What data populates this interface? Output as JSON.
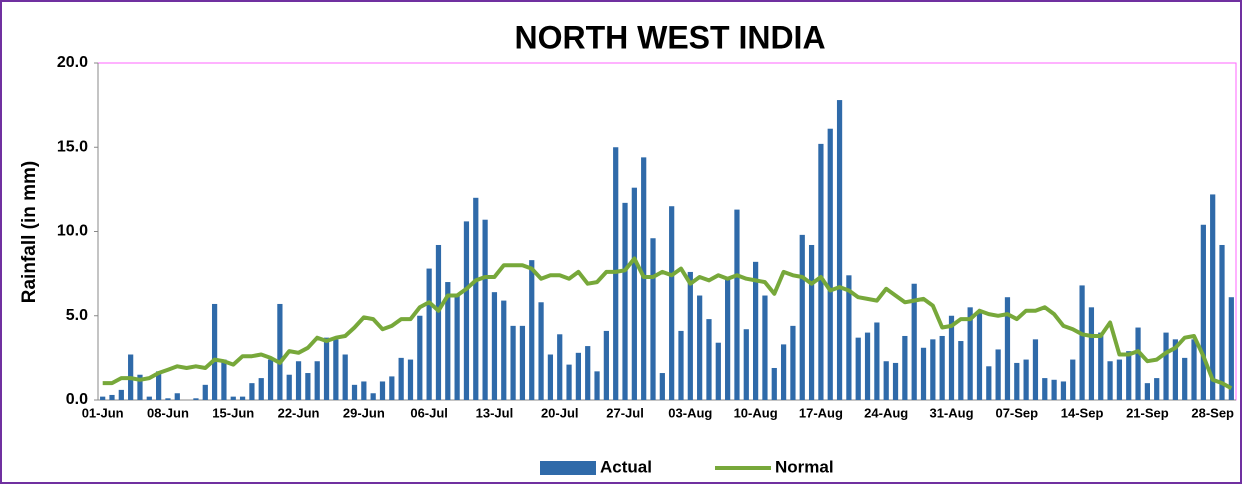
{
  "chart_data": {
    "type": "bar_line",
    "title": "NORTH WEST INDIA",
    "y_label": "Rainfall (in mm)",
    "categories": [
      "01-Jun",
      null,
      null,
      null,
      null,
      null,
      null,
      "08-Jun",
      null,
      null,
      null,
      null,
      null,
      null,
      "15-Jun",
      null,
      null,
      null,
      null,
      null,
      null,
      "22-Jun",
      null,
      null,
      null,
      null,
      null,
      null,
      "29-Jun",
      null,
      null,
      null,
      null,
      null,
      null,
      "06-Jul",
      null,
      null,
      null,
      null,
      null,
      null,
      "13-Jul",
      null,
      null,
      null,
      null,
      null,
      null,
      "20-Jul",
      null,
      null,
      null,
      null,
      null,
      null,
      "27-Jul",
      null,
      null,
      null,
      null,
      null,
      null,
      "03-Aug",
      null,
      null,
      null,
      null,
      null,
      null,
      "10-Aug",
      null,
      null,
      null,
      null,
      null,
      null,
      "17-Aug",
      null,
      null,
      null,
      null,
      null,
      null,
      "24-Aug",
      null,
      null,
      null,
      null,
      null,
      null,
      "31-Aug",
      null,
      null,
      null,
      null,
      null,
      null,
      "07-Sep",
      null,
      null,
      null,
      null,
      null,
      null,
      "14-Sep",
      null,
      null,
      null,
      null,
      null,
      null,
      "21-Sep",
      null,
      null,
      null,
      null,
      null,
      null,
      "28-Sep",
      null,
      null
    ],
    "series": [
      {
        "name": "Actual",
        "kind": "bar",
        "color": "#2f6aa9",
        "values": [
          0.2,
          0.3,
          0.6,
          2.7,
          1.5,
          0.2,
          1.7,
          0.1,
          0.4,
          0,
          0.1,
          0.9,
          5.7,
          2.4,
          0.2,
          0.2,
          1.0,
          1.3,
          2.4,
          5.7,
          1.5,
          2.3,
          1.6,
          2.3,
          3.7,
          3.6,
          2.7,
          0.9,
          1.1,
          0.4,
          1.1,
          1.4,
          2.5,
          2.4,
          5.0,
          7.8,
          9.2,
          7.0,
          6.3,
          10.6,
          12.0,
          10.7,
          6.4,
          5.9,
          4.4,
          4.4,
          8.3,
          5.8,
          2.7,
          3.9,
          2.1,
          2.8,
          3.2,
          1.7,
          4.1,
          15.0,
          11.7,
          12.6,
          14.4,
          9.6,
          1.6,
          11.5,
          4.1,
          7.6,
          6.2,
          4.8,
          3.4,
          7.2,
          11.3,
          4.2,
          8.2,
          6.2,
          1.9,
          3.3,
          4.4,
          9.8,
          9.2,
          15.2,
          16.1,
          17.8,
          7.4,
          3.7,
          4.0,
          4.6,
          2.3,
          2.2,
          3.8,
          6.9,
          3.1,
          3.6,
          3.8,
          5.0,
          3.5,
          5.5,
          5.3,
          2.0,
          3.0,
          6.1,
          2.2,
          2.4,
          3.6,
          1.3,
          1.2,
          1.1,
          2.4,
          6.8,
          5.5,
          4.0,
          2.3,
          2.4,
          2.9,
          4.3,
          1.0,
          1.3,
          4.0,
          3.6,
          2.5,
          3.6,
          10.4,
          12.2,
          9.2,
          6.1
        ]
      },
      {
        "name": "Normal",
        "kind": "line",
        "color": "#77a83a",
        "values": [
          1.0,
          1.0,
          1.3,
          1.3,
          1.2,
          1.3,
          1.6,
          1.8,
          2.0,
          1.9,
          2.0,
          1.9,
          2.4,
          2.3,
          2.1,
          2.6,
          2.6,
          2.7,
          2.5,
          2.2,
          2.9,
          2.8,
          3.1,
          3.7,
          3.5,
          3.7,
          3.8,
          4.3,
          4.9,
          4.8,
          4.2,
          4.4,
          4.8,
          4.8,
          5.5,
          5.8,
          5.3,
          6.2,
          6.2,
          6.6,
          7.1,
          7.3,
          7.3,
          8.0,
          8.0,
          8.0,
          7.8,
          7.2,
          7.4,
          7.4,
          7.2,
          7.6,
          6.9,
          7.0,
          7.6,
          7.6,
          7.7,
          8.4,
          7.3,
          7.3,
          7.6,
          7.4,
          7.8,
          6.9,
          7.3,
          7.1,
          7.4,
          7.2,
          7.4,
          7.2,
          7.1,
          7.0,
          6.3,
          7.6,
          7.4,
          7.3,
          6.9,
          7.3,
          6.5,
          6.7,
          6.5,
          6.1,
          6.0,
          5.9,
          6.6,
          6.2,
          5.8,
          5.9,
          6.0,
          5.6,
          4.3,
          4.4,
          4.8,
          4.8,
          5.3,
          5.1,
          5.0,
          5.1,
          4.8,
          5.3,
          5.3,
          5.5,
          5.1,
          4.4,
          4.2,
          3.9,
          3.8,
          3.8,
          4.6,
          2.7,
          2.7,
          2.9,
          2.3,
          2.4,
          2.8,
          3.1,
          3.7,
          3.8,
          2.6,
          1.2,
          1.0,
          0.7
        ]
      }
    ],
    "ylim": [
      0,
      20
    ],
    "yticks": [
      {
        "value": 0,
        "label": "0.0"
      },
      {
        "value": 5,
        "label": "5.0"
      },
      {
        "value": 10,
        "label": "10.0"
      },
      {
        "value": 15,
        "label": "15.0"
      },
      {
        "value": 20,
        "label": "20.0"
      }
    ],
    "grid": false,
    "legend": "bottom"
  }
}
